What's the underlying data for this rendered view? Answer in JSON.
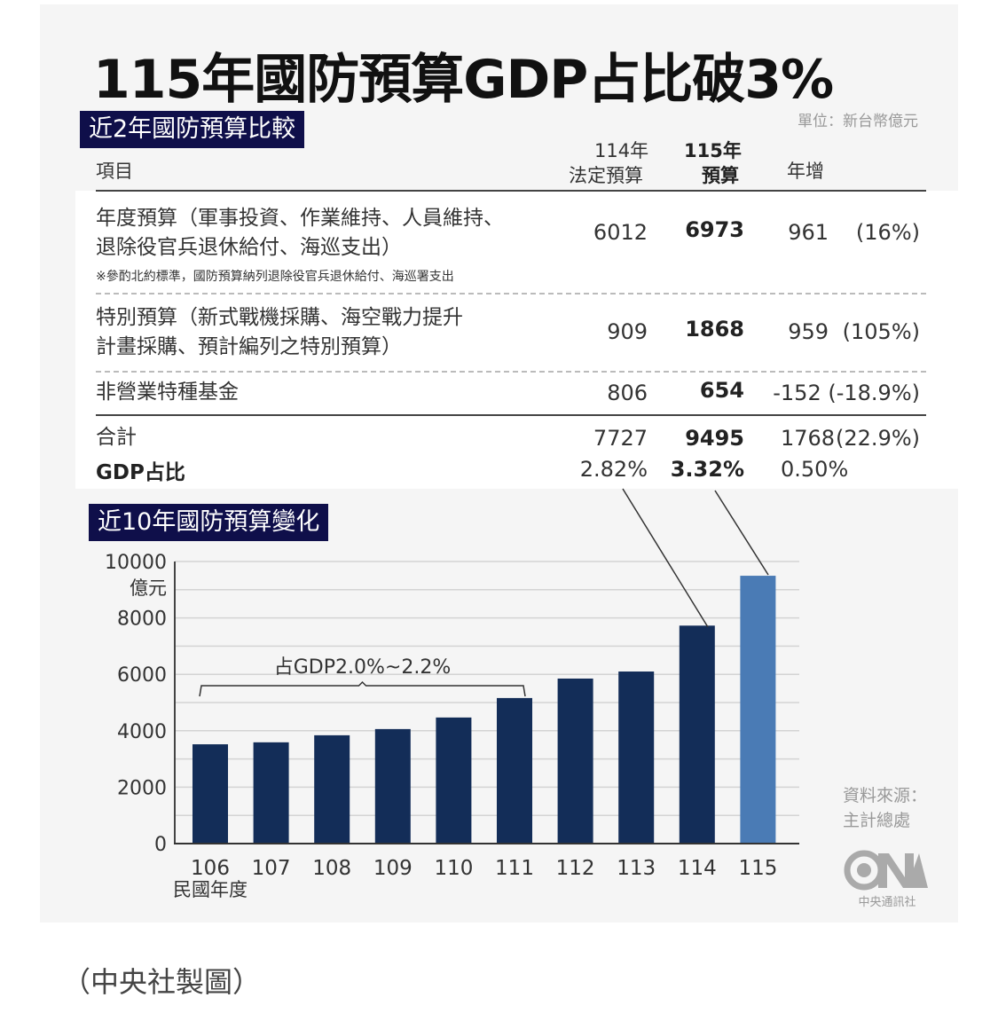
{
  "title": "115年國防預算GDP占比破3%",
  "section1": {
    "badge": "近2年國防預算比較",
    "unit": "單位：新台幣億元",
    "headers": {
      "item": "項目",
      "col114_line1": "114年",
      "col114_line2": "法定預算",
      "col115_line1": "115年",
      "col115_line2": "預算",
      "growth": "年增"
    },
    "rows": [
      {
        "label_line1": "年度預算（軍事投資、作業維持、人員維持、",
        "label_line2": "退除役官兵退休給付、海巡支出）",
        "note": "※參酌北約標準，國防預算納列退除役官兵退休給付、海巡署支出",
        "v114": "6012",
        "v115": "6973",
        "growth": "961",
        "growth_pct": "(16%)"
      },
      {
        "label_line1": "特別預算（新式戰機採購、海空戰力提升",
        "label_line2": "計畫採購、預計編列之特別預算）",
        "v114": "909",
        "v115": "1868",
        "growth": "959",
        "growth_pct": "(105%)"
      },
      {
        "label_line1": "非營業特種基金",
        "v114": "806",
        "v115": "654",
        "growth": "-152",
        "growth_pct": "(-18.9%)"
      }
    ],
    "total": {
      "label": "合計",
      "v114": "7727",
      "v115": "9495",
      "growth": "1768",
      "growth_pct": "(22.9%)"
    },
    "gdp": {
      "label": "GDP占比",
      "v114": "2.82%",
      "v115": "3.32%",
      "growth": "0.50%"
    }
  },
  "section2": {
    "badge": "近10年國防預算變化"
  },
  "chart_data": {
    "type": "bar",
    "title": "近10年國防預算變化",
    "xlabel": "民國年度",
    "ylabel": "億元",
    "categories": [
      "106",
      "107",
      "108",
      "109",
      "110",
      "111",
      "112",
      "113",
      "114",
      "115"
    ],
    "values": [
      3520,
      3590,
      3840,
      4060,
      4470,
      5160,
      5850,
      6100,
      7727,
      9495
    ],
    "ylim": [
      0,
      10000
    ],
    "yticks": [
      "0",
      "2000",
      "4000",
      "6000",
      "8000",
      "10000"
    ],
    "grid_step": 1000,
    "grid": true,
    "annotation": {
      "text": "占GDP2.0%~2.2%",
      "span": [
        "106",
        "111"
      ]
    },
    "colors": {
      "default": "#132d58",
      "highlight": "#4a7bb5",
      "highlight_category": "115"
    }
  },
  "source": {
    "line1": "資料來源：",
    "line2": "主計總處"
  },
  "logo": {
    "mark": "CNA",
    "name": "中央通訊社"
  },
  "caption": "（中央社製圖）"
}
